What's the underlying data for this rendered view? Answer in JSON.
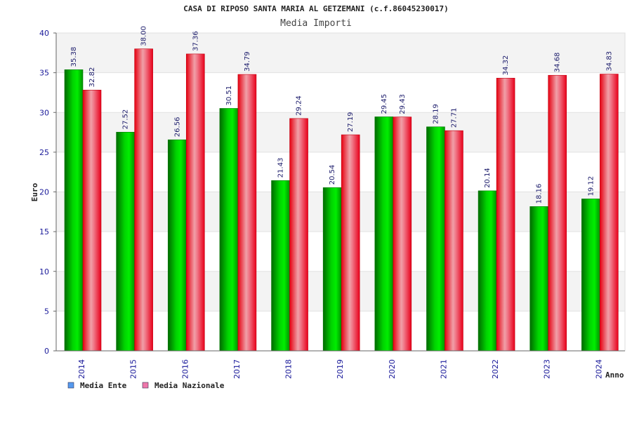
{
  "chart_data": {
    "type": "bar",
    "title": "CASA DI RIPOSO SANTA MARIA AL GETZEMANI (c.f.86045230017)",
    "subtitle": "Media Importi",
    "xlabel": "Anno",
    "ylabel": "Euro",
    "ylim": [
      0,
      40
    ],
    "yticks": [
      "0",
      "5",
      "10",
      "15",
      "20",
      "25",
      "30",
      "35",
      "40"
    ],
    "categories": [
      "2014",
      "2015",
      "2016",
      "2017",
      "2018",
      "2019",
      "2020",
      "2021",
      "2022",
      "2023",
      "2024"
    ],
    "series": [
      {
        "name": "Media Ente",
        "color": "#00c000",
        "values": [
          35.38,
          27.52,
          26.56,
          30.51,
          21.43,
          20.54,
          29.45,
          28.19,
          20.14,
          18.16,
          19.12
        ],
        "labels": [
          "35.38",
          "27.52",
          "26.56",
          "30.51",
          "21.43",
          "20.54",
          "29.45",
          "28.19",
          "20.14",
          "18.16",
          "19.12"
        ]
      },
      {
        "name": "Media Nazionale",
        "color": "#ee1122",
        "values": [
          32.82,
          38.0,
          37.36,
          34.79,
          29.24,
          27.19,
          29.43,
          27.71,
          34.32,
          34.68,
          34.83
        ],
        "labels": [
          "32.82",
          "38.00",
          "37.36",
          "34.79",
          "29.24",
          "27.19",
          "29.43",
          "27.71",
          "34.32",
          "34.68",
          "34.83"
        ]
      }
    ],
    "legend": {
      "placement": "bottom-left",
      "items": [
        {
          "label": "Media Ente",
          "color": "#5599ee"
        },
        {
          "label": "Media Nazionale",
          "color": "#ee77aa"
        }
      ]
    },
    "grid": true
  }
}
